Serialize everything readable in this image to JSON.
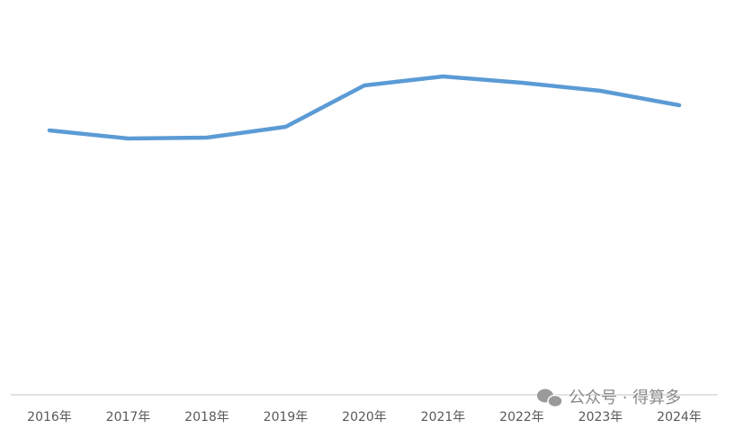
{
  "chart_data": {
    "type": "line",
    "categories": [
      "2016年",
      "2017年",
      "2018年",
      "2019年",
      "2020年",
      "2021年",
      "2022年",
      "2023年",
      "2024年"
    ],
    "series": [
      {
        "name": null,
        "color": "#5b9bd5",
        "values": [
          73.5,
          71.25,
          71.5,
          74.5,
          86,
          88.5,
          86.75,
          84.5,
          80.5
        ]
      }
    ],
    "ylim": [
      0,
      100
    ],
    "watermark": "公众号 · 得算多"
  }
}
